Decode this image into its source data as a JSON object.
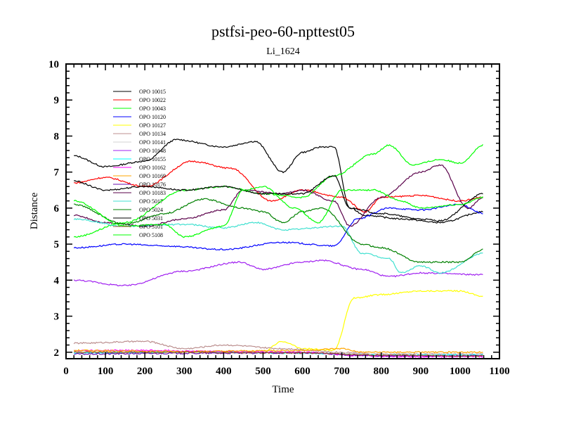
{
  "chart_data": {
    "type": "line",
    "title": "pstfsi-peo-60-npttest05",
    "subtitle": "Li_1624",
    "xlabel": "Time",
    "ylabel": "Distance",
    "xlim": [
      0,
      1100
    ],
    "ylim": [
      1.82,
      10
    ],
    "xticks": [
      "0",
      "100",
      "200",
      "300",
      "400",
      "500",
      "600",
      "700",
      "800",
      "900",
      "1000",
      "1100"
    ],
    "yticks": [
      "2",
      "3",
      "4",
      "5",
      "6",
      "7",
      "8",
      "9",
      "10"
    ],
    "grid": false,
    "legend_position": "top-left",
    "series": [
      {
        "name": "OPO 10015",
        "color": "#000000",
        "x": [
          20,
          100,
          200,
          280,
          400,
          480,
          550,
          600,
          650,
          680,
          720,
          760,
          850,
          950,
          1060
        ],
        "y": [
          7.45,
          7.15,
          7.3,
          7.9,
          7.7,
          7.85,
          7.0,
          7.55,
          7.7,
          7.7,
          6.0,
          5.8,
          5.7,
          5.6,
          5.9
        ]
      },
      {
        "name": "OPO 10022",
        "color": "#ff0000",
        "x": [
          20,
          100,
          200,
          320,
          420,
          520,
          600,
          700,
          760,
          800,
          900,
          1000,
          1060
        ],
        "y": [
          6.7,
          6.85,
          6.6,
          7.3,
          7.1,
          6.2,
          6.5,
          6.3,
          5.9,
          6.3,
          6.35,
          6.2,
          6.3
        ]
      },
      {
        "name": "OPO 10043",
        "color": "#00ff00",
        "x": [
          20,
          150,
          300,
          400,
          500,
          600,
          680,
          780,
          820,
          880,
          950,
          1000,
          1060
        ],
        "y": [
          5.2,
          5.6,
          6.5,
          6.6,
          6.4,
          6.3,
          6.9,
          7.5,
          7.75,
          7.2,
          7.35,
          7.25,
          7.75
        ]
      },
      {
        "name": "OPO 10120",
        "color": "#0000ff",
        "x": [
          20,
          150,
          250,
          400,
          550,
          680,
          740,
          820,
          900,
          1000,
          1060
        ],
        "y": [
          4.9,
          5.0,
          4.95,
          4.85,
          5.05,
          4.95,
          5.7,
          6.0,
          5.95,
          6.1,
          5.85
        ]
      },
      {
        "name": "OPO 10127",
        "color": "#ffff00",
        "x": [
          20,
          200,
          400,
          500,
          550,
          600,
          680,
          730,
          800,
          900,
          1000,
          1060
        ],
        "y": [
          2.02,
          2.0,
          2.0,
          2.02,
          2.3,
          2.1,
          2.05,
          3.5,
          3.6,
          3.7,
          3.7,
          3.55
        ]
      },
      {
        "name": "OPO 10134",
        "color": "#bc8f8f",
        "x": [
          20,
          200,
          300,
          400,
          550,
          700,
          800,
          900,
          1060
        ],
        "y": [
          2.25,
          2.3,
          2.1,
          2.2,
          2.1,
          2.0,
          1.95,
          1.95,
          1.95
        ]
      },
      {
        "name": "OPO 10141",
        "color": "#d3d3d3",
        "x": [
          20,
          300,
          600,
          800,
          1060
        ],
        "y": [
          2.0,
          2.02,
          2.0,
          1.95,
          1.95
        ]
      },
      {
        "name": "OPO 10148",
        "color": "#a020f0",
        "x": [
          20,
          150,
          300,
          440,
          500,
          600,
          650,
          750,
          820,
          900,
          1060
        ],
        "y": [
          4.0,
          3.85,
          4.25,
          4.5,
          4.3,
          4.5,
          4.55,
          4.3,
          4.1,
          4.2,
          4.15
        ]
      },
      {
        "name": "OPO 10155",
        "color": "#00ffff",
        "x": [
          20,
          300,
          600,
          750,
          1060
        ],
        "y": [
          1.98,
          2.0,
          1.98,
          1.92,
          1.92
        ]
      },
      {
        "name": "OPO 10162",
        "color": "#ff00ff",
        "x": [
          20,
          200,
          400,
          600,
          750,
          900,
          1060
        ],
        "y": [
          2.05,
          2.05,
          2.02,
          2.0,
          1.9,
          1.88,
          1.88
        ]
      },
      {
        "name": "OPO 10169",
        "color": "#ffa500",
        "x": [
          20,
          300,
          600,
          700,
          750,
          900,
          1060
        ],
        "y": [
          2.05,
          2.02,
          2.05,
          2.1,
          2.0,
          2.0,
          2.0
        ]
      },
      {
        "name": "OPO 10176",
        "color": "#6a0dad",
        "x": [
          20,
          300,
          600,
          800,
          1060
        ],
        "y": [
          1.95,
          1.97,
          1.98,
          1.9,
          1.9
        ]
      },
      {
        "name": "OPO 10183",
        "color": "#5a004a",
        "x": [
          20,
          100,
          200,
          300,
          400,
          450,
          550,
          600,
          680,
          720,
          800,
          900,
          950,
          1020,
          1060
        ],
        "y": [
          5.8,
          5.6,
          5.5,
          5.7,
          5.95,
          6.5,
          6.4,
          6.5,
          6.2,
          5.5,
          6.3,
          7.0,
          7.2,
          6.0,
          6.3
        ]
      },
      {
        "name": "OPO 5017",
        "color": "#40e0d0",
        "x": [
          20,
          150,
          300,
          400,
          480,
          550,
          700,
          750,
          820,
          850,
          900,
          950,
          1060
        ],
        "y": [
          5.7,
          5.5,
          5.55,
          5.45,
          5.6,
          5.4,
          5.5,
          4.75,
          4.6,
          4.2,
          4.4,
          4.2,
          4.75
        ]
      },
      {
        "name": "OPO 5024",
        "color": "#008000",
        "x": [
          20,
          150,
          250,
          350,
          450,
          500,
          550,
          600,
          650,
          750,
          800,
          900,
          1000,
          1060
        ],
        "y": [
          6.1,
          5.55,
          5.85,
          6.25,
          6.0,
          5.9,
          5.6,
          5.9,
          6.0,
          5.0,
          4.9,
          4.5,
          4.5,
          4.85
        ]
      },
      {
        "name": "OPO 5031",
        "color": "#000000",
        "x": [
          20,
          100,
          200,
          300,
          400,
          500,
          600,
          680,
          720,
          800,
          900,
          950,
          1060
        ],
        "y": [
          6.75,
          6.5,
          6.6,
          6.5,
          6.6,
          6.4,
          6.4,
          6.9,
          6.0,
          5.85,
          5.7,
          5.65,
          6.4
        ]
      },
      {
        "name": "OPO 5101",
        "color": "#a0522d",
        "x": [
          20,
          300,
          600,
          800,
          1060
        ],
        "y": [
          2.0,
          2.0,
          1.98,
          1.92,
          1.9
        ]
      },
      {
        "name": "OPO 5108",
        "color": "#00ff00",
        "x": [
          20,
          150,
          250,
          300,
          400,
          450,
          500,
          580,
          640,
          700,
          780,
          850,
          900,
          1000,
          1060
        ],
        "y": [
          6.2,
          5.5,
          5.55,
          5.2,
          5.5,
          6.5,
          6.6,
          6.0,
          5.6,
          6.5,
          6.5,
          6.2,
          6.0,
          6.1,
          6.3
        ]
      }
    ]
  }
}
